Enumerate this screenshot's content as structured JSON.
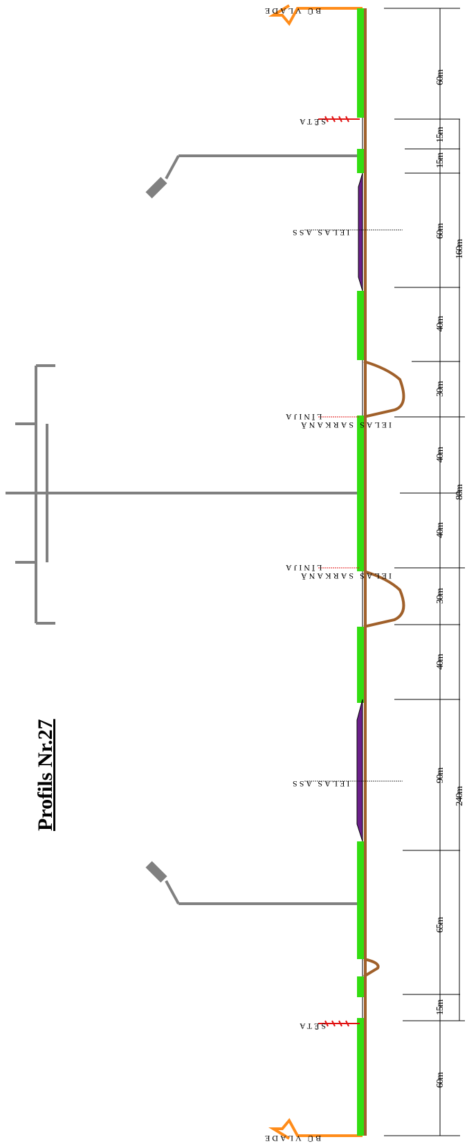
{
  "title": "Profils Nr.27",
  "labels": {
    "bu_vlade": "BŪ VLADE",
    "seta": "SĒTA",
    "ielas_ass": "IELAS ASS",
    "ielas_sarkana": "IELAS SARKANĀ",
    "linija": "LĪNIJA"
  },
  "dimensions": {
    "d1": "60m",
    "d2": "15m",
    "d3": "15m",
    "d4": "60m",
    "d5": "40m",
    "d6": "30m",
    "d7": "40m",
    "d8": "40m",
    "d9": "30m",
    "d10": "40m",
    "d11": "90m",
    "d12": "65m",
    "d13": "15m",
    "d14": "60m",
    "total_160": "160m",
    "total_80": "80m",
    "total_240": "240m"
  },
  "colors": {
    "line": "#000000",
    "ground": "#a0602a",
    "grass": "#33dd11",
    "asphalt": "#6b1f8a",
    "building": "#ff8c1a",
    "fence": "#e01010",
    "pole": "#808080"
  }
}
